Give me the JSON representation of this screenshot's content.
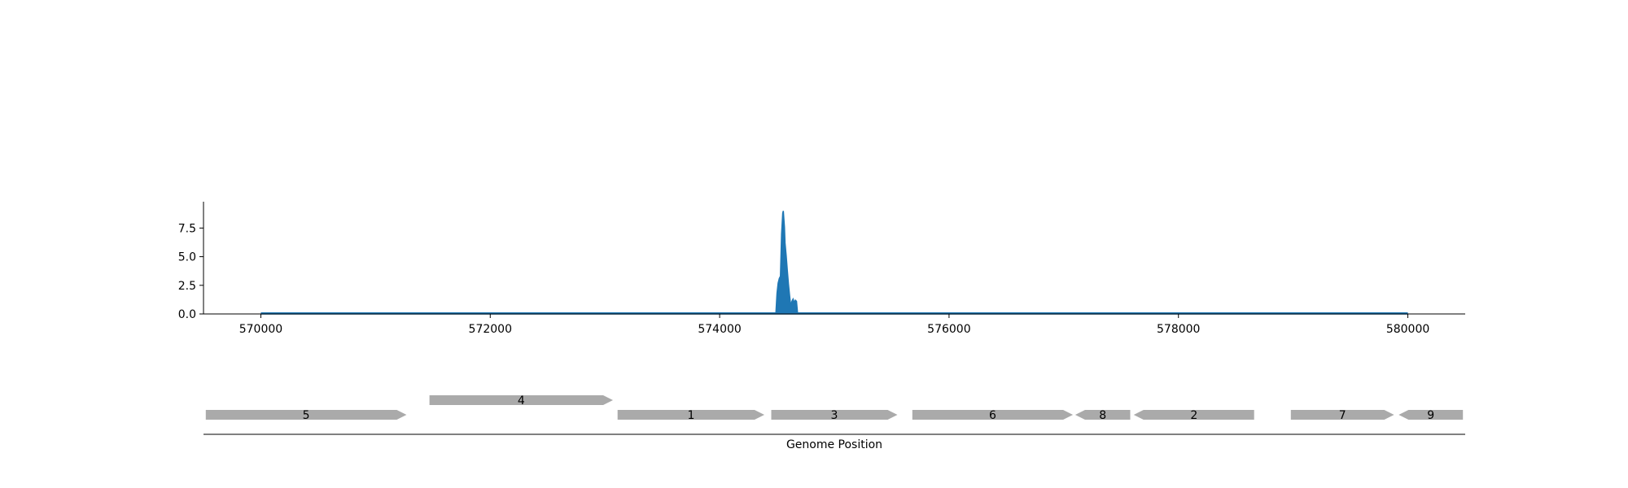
{
  "chart_data": [
    {
      "type": "area",
      "title": "",
      "xlabel": "",
      "ylabel": "",
      "xlim": [
        569500,
        580500
      ],
      "ylim": [
        0,
        9.8
      ],
      "grid": false,
      "color": "#1f77b4",
      "x_ticks": [
        570000,
        572000,
        574000,
        576000,
        578000,
        580000
      ],
      "x_tick_labels": [
        "570000",
        "572000",
        "574000",
        "576000",
        "578000",
        "580000"
      ],
      "y_ticks": [
        0,
        2.5,
        5,
        7.5
      ],
      "y_tick_labels": [
        "0.0",
        "2.5",
        "5.0",
        "7.5"
      ],
      "x": [
        570000,
        574490,
        574500,
        574510,
        574520,
        574530,
        574540,
        574550,
        574555,
        574560,
        574565,
        574570,
        574580,
        574590,
        574600,
        574610,
        574620,
        574630,
        574640,
        574650,
        574660,
        574670,
        574680,
        580000
      ],
      "values": [
        0,
        0,
        1.8,
        2.7,
        3.1,
        3.3,
        7.0,
        8.8,
        9.0,
        8.3,
        7.6,
        6.2,
        5.1,
        3.8,
        2.6,
        1.6,
        0.7,
        1.1,
        1.3,
        1.0,
        1.2,
        1.1,
        0,
        0
      ]
    },
    {
      "type": "gene-map",
      "xlabel": "Genome Position",
      "xlim": [
        569500,
        580500
      ],
      "color": "#aaaaaa",
      "genes": [
        {
          "label": "5",
          "start": 569520,
          "end": 571270,
          "strand": "+",
          "row": 0
        },
        {
          "label": "4",
          "start": 571470,
          "end": 573070,
          "strand": "+",
          "row": 1
        },
        {
          "label": "1",
          "start": 573110,
          "end": 574390,
          "strand": "+",
          "row": 0
        },
        {
          "label": "3",
          "start": 574450,
          "end": 575550,
          "strand": "+",
          "row": 0
        },
        {
          "label": "6",
          "start": 575680,
          "end": 577080,
          "strand": "+",
          "row": 0
        },
        {
          "label": "8",
          "start": 577100,
          "end": 577580,
          "strand": "-",
          "row": 0
        },
        {
          "label": "2",
          "start": 577610,
          "end": 578660,
          "strand": "-",
          "row": 0
        },
        {
          "label": "7",
          "start": 578980,
          "end": 579880,
          "strand": "+",
          "row": 0
        },
        {
          "label": "9",
          "start": 579920,
          "end": 580480,
          "strand": "-",
          "row": 0
        }
      ]
    }
  ]
}
